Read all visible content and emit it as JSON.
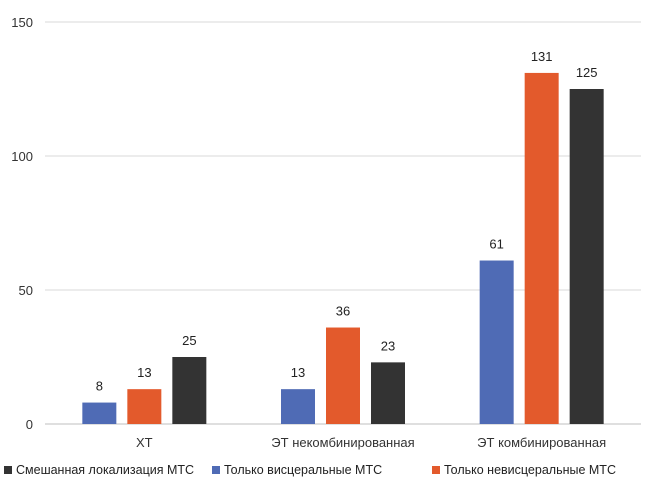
{
  "chart_data": {
    "type": "bar",
    "categories": [
      "ХТ",
      "ЭТ некомбинированная",
      "ЭТ комбинированная"
    ],
    "series": [
      {
        "name": "Только висцеральные МТС",
        "color": "#4f6bb5",
        "values": [
          8,
          13,
          61
        ]
      },
      {
        "name": "Только невисцеральные МТС",
        "color": "#e35a2c",
        "values": [
          13,
          36,
          131
        ]
      },
      {
        "name": "Смешанная локализация МТС",
        "color": "#333333",
        "values": [
          25,
          23,
          125
        ]
      }
    ],
    "yticks": [
      0,
      50,
      100,
      150
    ],
    "ylim": [
      0,
      150
    ],
    "legend_order": [
      "Смешанная локализация МТС",
      "Только висцеральные МТС",
      "Только невисцеральные МТС"
    ],
    "legend_position": "bottom",
    "grid": true
  }
}
